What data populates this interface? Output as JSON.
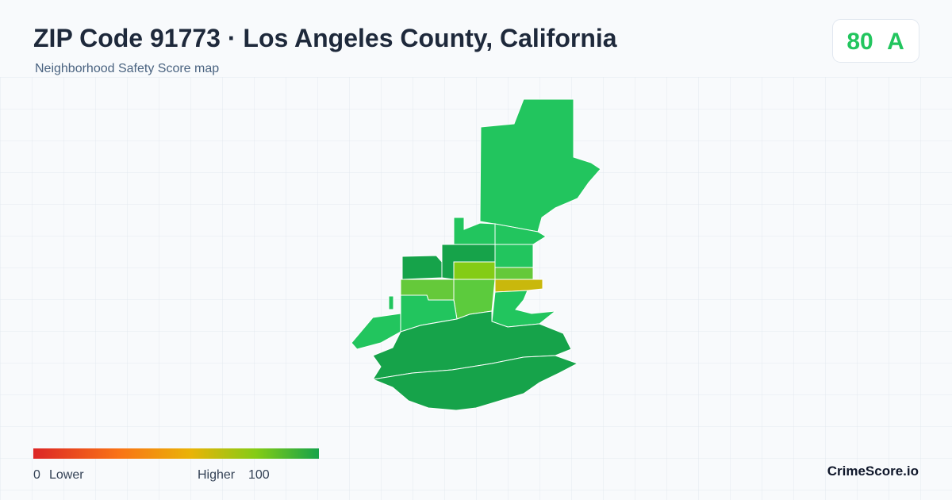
{
  "header": {
    "title": "ZIP Code 91773 · Los Angeles County, California",
    "subtitle": "Neighborhood Safety Score map"
  },
  "score": {
    "value": 80,
    "grade": "A"
  },
  "legend": {
    "min": 0,
    "min_label": "Lower",
    "max_label": "Higher",
    "max": 100
  },
  "footer": {
    "brand": "CrimeScore.io"
  }
}
